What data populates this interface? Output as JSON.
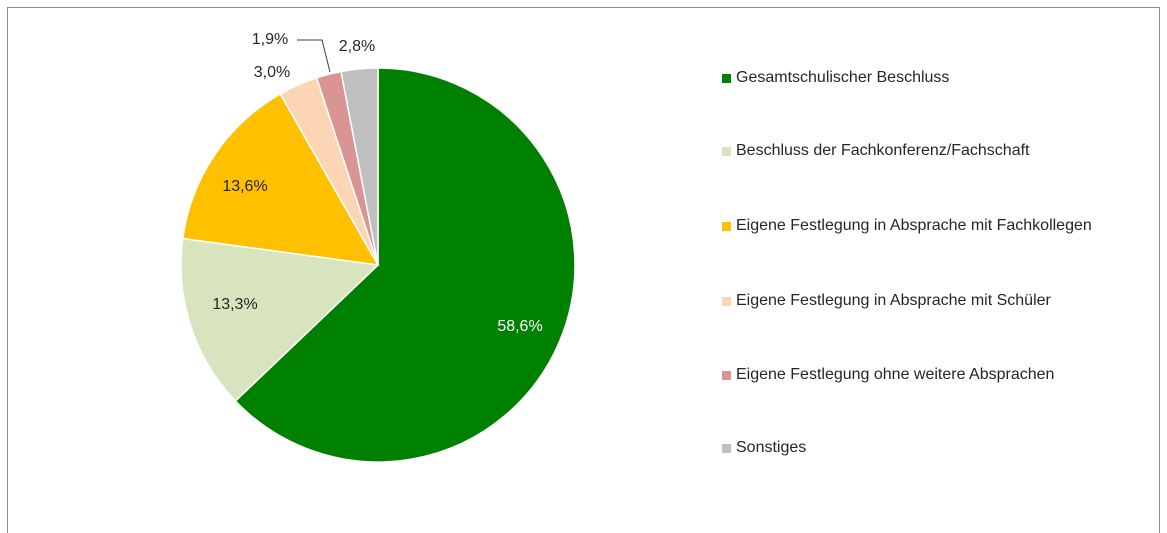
{
  "chart_data": {
    "type": "pie",
    "categories": [
      "Gesamtschulischer Beschluss",
      "Beschluss der Fachkonferenz/Fachschaft",
      "Eigene Festlegung in Absprache mit Fachkollegen",
      "Eigene Festlegung in Absprache mit Schüler",
      "Eigene Festlegung ohne weitere Absprachen",
      "Sonstiges"
    ],
    "values": [
      58.6,
      13.3,
      13.6,
      3.0,
      1.9,
      2.8
    ],
    "value_labels": [
      "58,6%",
      "13,3%",
      "13,6%",
      "3,0%",
      "1,9%",
      "2,8%"
    ],
    "colors": [
      "#008000",
      "#d7e4bd",
      "#ffc000",
      "#fcd5b5",
      "#d99594",
      "#bfbfbf"
    ],
    "legend": "right"
  }
}
